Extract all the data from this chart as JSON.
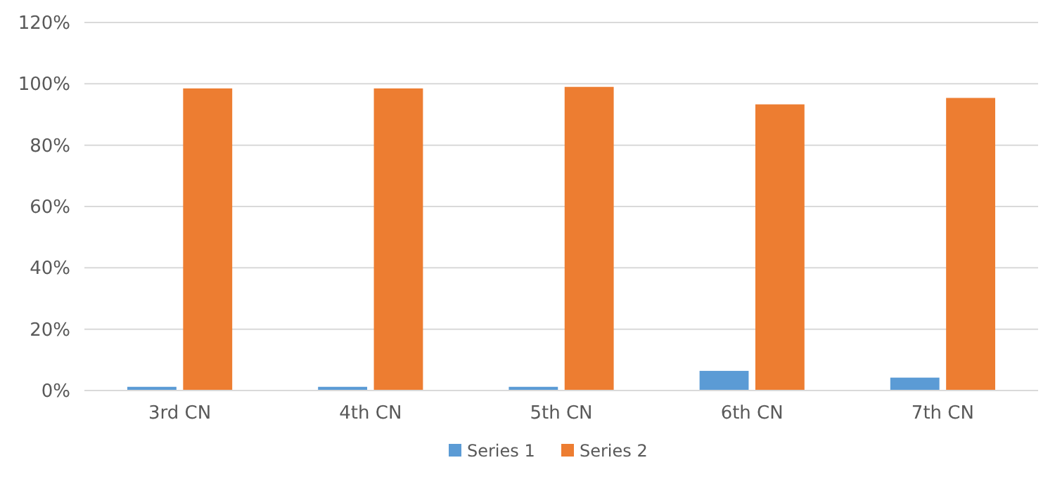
{
  "chart_data": {
    "type": "bar",
    "categories": [
      "3rd CN",
      "4th CN",
      "5th CN",
      "6th CN",
      "7th CN"
    ],
    "series": [
      {
        "name": "Series 1",
        "color": "#5b9bd5",
        "values": [
          1.2,
          1.2,
          1.2,
          6.4,
          4.2
        ]
      },
      {
        "name": "Series 2",
        "color": "#ed7d31",
        "values": [
          98.5,
          98.5,
          99,
          93.3,
          95.4
        ]
      }
    ],
    "ylim": [
      0,
      120
    ],
    "yticks": [
      {
        "value": 0,
        "label": "0%"
      },
      {
        "value": 20,
        "label": "20%"
      },
      {
        "value": 40,
        "label": "40%"
      },
      {
        "value": 60,
        "label": "60%"
      },
      {
        "value": 80,
        "label": "80%"
      },
      {
        "value": 100,
        "label": "100%"
      },
      {
        "value": 120,
        "label": "120%"
      }
    ],
    "grid": "y",
    "legend": "bottom"
  }
}
